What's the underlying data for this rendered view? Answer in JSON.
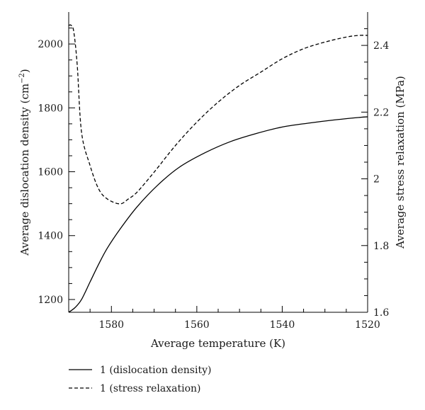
{
  "chart_data": {
    "type": "line",
    "title": "",
    "xlabel": "Average temperature (K)",
    "ylabel_left": "Average dislocation density (cm",
    "ylabel_left_exp": "−2",
    "ylabel_left_close": ")",
    "ylabel_right": "Average stress relaxation (MPa)",
    "xlim": [
      1590,
      1520
    ],
    "ylim_left": [
      1160,
      2100
    ],
    "ylim_right": [
      1.6,
      2.5
    ],
    "x_ticks": [
      1580,
      1560,
      1540,
      1520
    ],
    "x_tick_labels": [
      "1580",
      "1560",
      "1540",
      "1520"
    ],
    "y_left_ticks": [
      1200,
      1400,
      1600,
      1800,
      2000
    ],
    "y_left_tick_labels": [
      "1200",
      "1400",
      "1600",
      "1800",
      "2000"
    ],
    "y_right_ticks": [
      1.6,
      1.8,
      2.0,
      2.2,
      2.4
    ],
    "y_right_tick_labels": [
      "1.6",
      "1.8",
      "2",
      "2.2",
      "2.4"
    ],
    "grid": false,
    "legend_position": "bottom-left",
    "series": [
      {
        "name": "1 (dislocation density)",
        "axis": "left",
        "line_style": "solid",
        "color": "#000000",
        "x": [
          1590,
          1588.5,
          1587,
          1585,
          1583,
          1581,
          1578,
          1574,
          1569,
          1564,
          1558,
          1552,
          1546,
          1540,
          1534,
          1528,
          1522,
          1520
        ],
        "y": [
          1160,
          1175,
          1200,
          1255,
          1310,
          1360,
          1420,
          1490,
          1560,
          1615,
          1660,
          1695,
          1720,
          1740,
          1752,
          1762,
          1770,
          1772
        ]
      },
      {
        "name": "1 (stress relaxation)",
        "axis": "right",
        "line_style": "dashed",
        "color": "#000000",
        "x": [
          1590,
          1589.4,
          1588.8,
          1588,
          1587,
          1585,
          1583,
          1581,
          1578,
          1576,
          1574,
          1570,
          1565,
          1560,
          1555,
          1550,
          1545,
          1540,
          1535,
          1530,
          1525,
          1522,
          1520
        ],
        "y": [
          2.46,
          2.46,
          2.44,
          2.34,
          2.14,
          2.04,
          1.97,
          1.94,
          1.925,
          1.94,
          1.96,
          2.02,
          2.1,
          2.17,
          2.23,
          2.28,
          2.32,
          2.36,
          2.39,
          2.41,
          2.425,
          2.43,
          2.43
        ]
      }
    ]
  }
}
